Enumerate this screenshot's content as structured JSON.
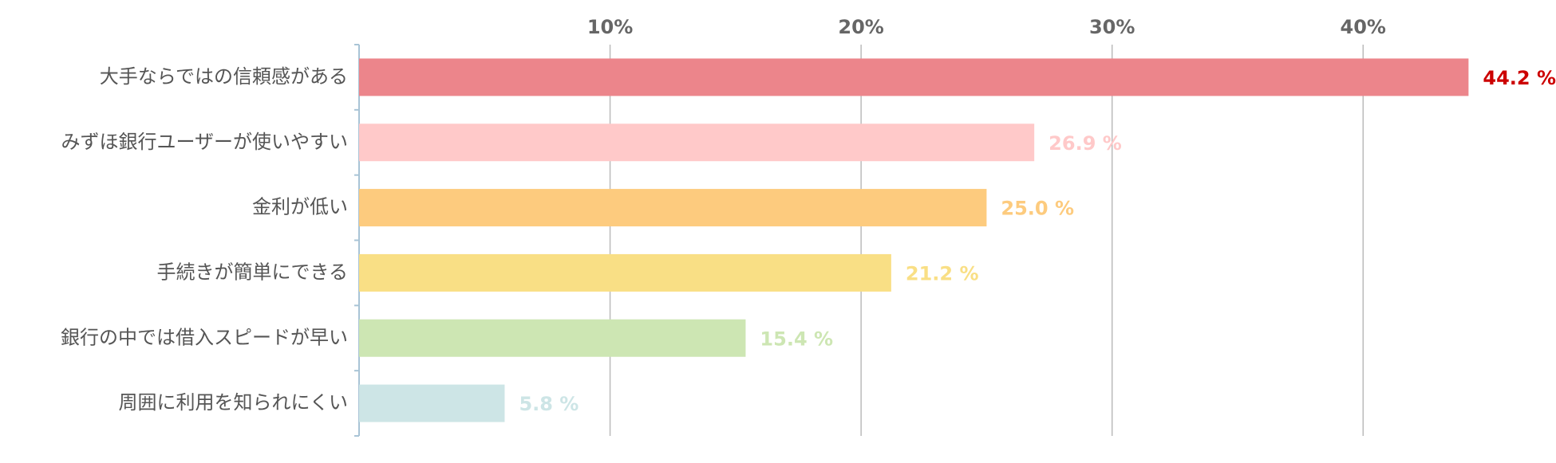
{
  "chart_data": {
    "type": "bar",
    "orientation": "horizontal",
    "categories": [
      "大手ならではの信頼感がある",
      "みずほ銀行ユーザーが使いやすい",
      "金利が低い",
      "手続きが簡単にできる",
      "銀行の中では借入スピードが早い",
      "周囲に利用を知られにくい"
    ],
    "values": [
      44.2,
      26.9,
      25.0,
      21.2,
      15.4,
      5.8
    ],
    "value_labels": [
      "44.2 %",
      "26.9 %",
      "25.0 %",
      "21.2 %",
      "15.4 %",
      "5.8 %"
    ],
    "colors": [
      "#ec858b",
      "#ffc9c9",
      "#fdcb7e",
      "#f9df85",
      "#cde6b3",
      "#cde5e6"
    ],
    "label_colors": [
      "#cc0000",
      "#ffc9c9",
      "#fdcb7e",
      "#f9df85",
      "#cde6b3",
      "#cde5e6"
    ],
    "xlim": [
      0,
      46
    ],
    "xticks": [
      {
        "value": 10,
        "label": "10%"
      },
      {
        "value": 20,
        "label": "20%"
      },
      {
        "value": 30,
        "label": "30%"
      },
      {
        "value": 40,
        "label": "40%"
      }
    ],
    "grid": true
  }
}
